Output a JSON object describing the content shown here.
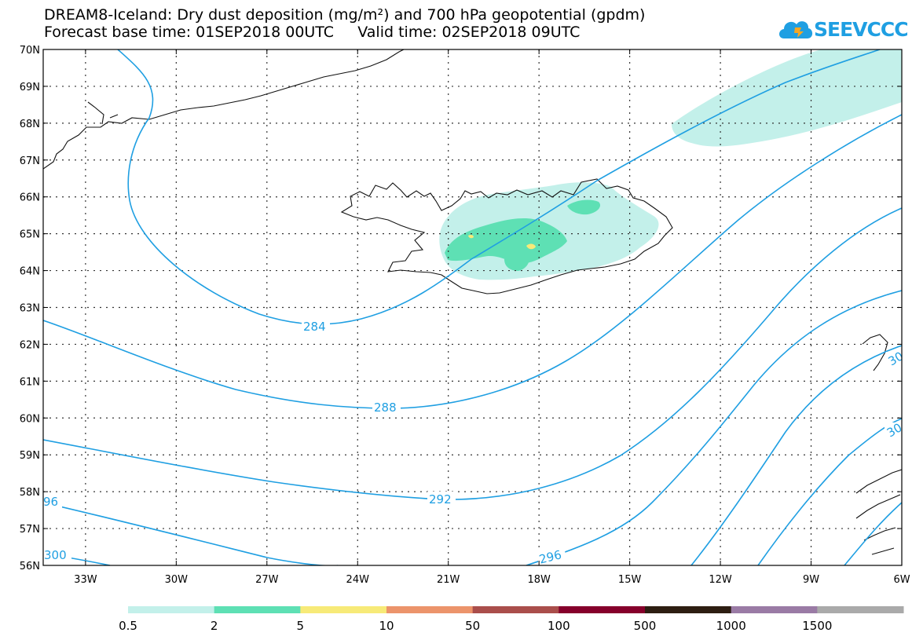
{
  "header": {
    "title_line1": "DREAM8-Iceland: Dry dust deposition (mg/m²) and 700 hPa geopotential (gpdm)",
    "title_line2": "Forecast base time: 01SEP2018 00UTC     Valid time: 02SEP2018 09UTC"
  },
  "logo": {
    "text": "SEEVCCC",
    "icon": "cloud-logo-icon",
    "color": "#1f9fe2"
  },
  "map": {
    "lat_labels": [
      "70N",
      "69N",
      "68N",
      "67N",
      "66N",
      "65N",
      "64N",
      "63N",
      "62N",
      "61N",
      "60N",
      "59N",
      "58N",
      "57N",
      "56N"
    ],
    "lon_labels": [
      "33W",
      "30W",
      "27W",
      "24W",
      "21W",
      "18W",
      "15W",
      "12W",
      "9W",
      "6W"
    ],
    "lat_range": [
      56,
      70
    ],
    "lon_range": [
      -34.4,
      -6
    ],
    "grid": "dotted",
    "contour_color": "#1f9fe2",
    "contour_labels": [
      "284",
      "288",
      "292",
      "296",
      "300",
      "96",
      "30",
      "30"
    ]
  },
  "legend": {
    "colors": [
      "#c3f0ea",
      "#5ee0b4",
      "#f7ea78",
      "#ec946b",
      "#aa4e4b",
      "#86002b",
      "#2d1e12",
      "#9a7ba5",
      "#aaaaaa"
    ],
    "labels": [
      "0.5",
      "2",
      "5",
      "10",
      "50",
      "100",
      "500",
      "1000",
      "1500"
    ]
  }
}
